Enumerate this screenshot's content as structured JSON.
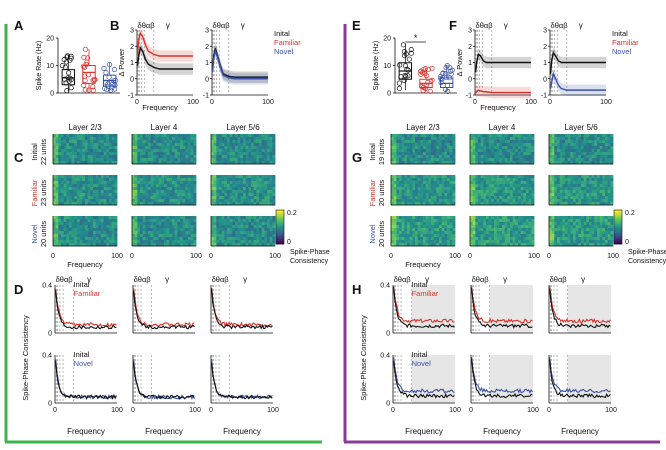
{
  "frames": {
    "left_color": "#3db54a",
    "right_color": "#8b3a9a"
  },
  "colors": {
    "initial": "#111111",
    "familiar": "#d9322b",
    "novel": "#3a52a5",
    "band": "#9a9a9a",
    "shade": "#e6e6e6"
  },
  "panel_labels": [
    "A",
    "B",
    "C",
    "D",
    "E",
    "F",
    "G",
    "H"
  ],
  "band_label": "δθαβ",
  "gamma_label": "γ",
  "x_label": "Frequency",
  "layers": [
    "Layer 2/3",
    "Layer 4",
    "Layer 5/6"
  ],
  "legend": {
    "initial": "Inital",
    "familiar": "Familiar",
    "novel": "Novel"
  },
  "colorbar": {
    "min_label": "0",
    "max_label": "0.2",
    "title_line1": "Spike-Phase",
    "title_line2": "Consistency"
  },
  "chart_data": [
    {
      "id": "A",
      "type": "boxplot",
      "ylabel": "Spike Rate (Hz)",
      "ylim": [
        0,
        20
      ],
      "yticks": [
        0,
        10,
        20
      ],
      "groups": [
        {
          "name": "Initial",
          "min": 0.5,
          "q1": 3,
          "median": 5.5,
          "q3": 8.5,
          "max": 14
        },
        {
          "name": "Familiar",
          "min": 0.5,
          "q1": 3.5,
          "median": 7.5,
          "q3": 10,
          "max": 16
        },
        {
          "name": "Novel",
          "min": 0.5,
          "q1": 2.5,
          "median": 4.5,
          "q3": 6.5,
          "max": 11
        }
      ]
    },
    {
      "id": "B",
      "type": "line",
      "ylabel": "Δ Power",
      "xlabel": "Frequency",
      "xlim": [
        0,
        100
      ],
      "ylim": [
        -1,
        3
      ],
      "yticks": [
        -1,
        0,
        1,
        2,
        3
      ],
      "xticks": [
        0,
        100
      ],
      "subpanels": [
        {
          "series": [
            {
              "name": "Familiar",
              "x": [
                1,
                3,
                6,
                10,
                15,
                20,
                30,
                40,
                60,
                80,
                100
              ],
              "y": [
                1.5,
                2.4,
                2.8,
                2.6,
                2.1,
                1.7,
                1.5,
                1.4,
                1.4,
                1.4,
                1.4
              ]
            },
            {
              "name": "Initial",
              "x": [
                1,
                3,
                6,
                10,
                15,
                20,
                30,
                40,
                60,
                80,
                100
              ],
              "y": [
                0.8,
                1.4,
                1.9,
                1.7,
                1.2,
                0.9,
                0.7,
                0.6,
                0.6,
                0.6,
                0.6
              ]
            }
          ]
        },
        {
          "series": [
            {
              "name": "Initial",
              "x": [
                1,
                3,
                6,
                10,
                15,
                20,
                30,
                40,
                60,
                80,
                100
              ],
              "y": [
                0.5,
                1.4,
                1.9,
                1.4,
                0.8,
                0.3,
                0.15,
                0.1,
                0.1,
                0.1,
                0.1
              ]
            },
            {
              "name": "Novel",
              "x": [
                1,
                3,
                6,
                10,
                15,
                20,
                30,
                40,
                60,
                80,
                100
              ],
              "y": [
                0.4,
                1.2,
                1.7,
                1.3,
                0.7,
                0.2,
                0.05,
                0.0,
                0.0,
                0.0,
                0.0
              ]
            }
          ]
        }
      ]
    },
    {
      "id": "C",
      "type": "heatmap",
      "rows": [
        {
          "condition": "Initial",
          "units": "22 units"
        },
        {
          "condition": "Familiar",
          "units": "23 units"
        },
        {
          "condition": "Novel",
          "units": "20 units"
        }
      ],
      "xlim": [
        0,
        100
      ],
      "xlabel": "Frequency",
      "clim": [
        0,
        0.2
      ]
    },
    {
      "id": "D",
      "type": "line",
      "ylabel": "Spike-Phase Consistency",
      "xlabel": "Frequency",
      "xlim": [
        0,
        100
      ],
      "ylim": [
        0,
        0.4
      ],
      "yticks": [
        0,
        0.4
      ],
      "rows": [
        {
          "compare": "Familiar",
          "base_level": 0.05,
          "cmp_level": 0.07,
          "peak": 0.38
        },
        {
          "compare": "Novel",
          "base_level": 0.05,
          "cmp_level": 0.05,
          "peak": 0.36
        }
      ]
    },
    {
      "id": "E",
      "type": "boxplot",
      "ylabel": "Spike Rate (Hz)",
      "ylim": [
        0,
        20
      ],
      "yticks": [
        0,
        10,
        20
      ],
      "significance": "*",
      "groups": [
        {
          "name": "Initial",
          "min": 1,
          "q1": 5,
          "median": 8,
          "q3": 11,
          "max": 18
        },
        {
          "name": "Familiar",
          "min": 0.5,
          "q1": 2,
          "median": 3.5,
          "q3": 5,
          "max": 9
        },
        {
          "name": "Novel",
          "min": 0.5,
          "q1": 2,
          "median": 3.5,
          "q3": 5.5,
          "max": 10
        }
      ]
    },
    {
      "id": "F",
      "type": "line",
      "ylabel": "Δ Power",
      "xlabel": "Frequency",
      "xlim": [
        0,
        100
      ],
      "ylim": [
        -1,
        3
      ],
      "yticks": [
        -1,
        0,
        1,
        2,
        3
      ],
      "xticks": [
        0,
        100
      ],
      "subpanels": [
        {
          "series": [
            {
              "name": "Initial",
              "x": [
                1,
                3,
                6,
                10,
                15,
                20,
                30,
                40,
                60,
                80,
                100
              ],
              "y": [
                0.4,
                1.0,
                1.5,
                1.4,
                1.1,
                1.0,
                1.0,
                1.0,
                1.0,
                1.0,
                1.0
              ]
            },
            {
              "name": "Familiar",
              "x": [
                1,
                3,
                6,
                10,
                15,
                20,
                30,
                40,
                60,
                80,
                100
              ],
              "y": [
                -0.9,
                -0.8,
                -0.7,
                -0.75,
                -0.8,
                -0.8,
                -0.85,
                -0.85,
                -0.85,
                -0.85,
                -0.85
              ]
            }
          ]
        },
        {
          "series": [
            {
              "name": "Initial",
              "x": [
                1,
                3,
                6,
                10,
                15,
                20,
                30,
                40,
                60,
                80,
                100
              ],
              "y": [
                0.3,
                1.1,
                1.6,
                1.4,
                1.1,
                1.0,
                1.0,
                1.0,
                1.0,
                1.0,
                1.0
              ]
            },
            {
              "name": "Novel",
              "x": [
                1,
                3,
                6,
                10,
                15,
                20,
                30,
                40,
                60,
                80,
                100
              ],
              "y": [
                -0.6,
                -0.2,
                0.3,
                0.0,
                -0.4,
                -0.6,
                -0.7,
                -0.7,
                -0.7,
                -0.7,
                -0.7
              ]
            }
          ]
        }
      ]
    },
    {
      "id": "G",
      "type": "heatmap",
      "rows": [
        {
          "condition": "Initial",
          "units": "19 units"
        },
        {
          "condition": "Familiar",
          "units": "20 units"
        },
        {
          "condition": "Novel",
          "units": "20 units"
        }
      ],
      "xlim": [
        0,
        100
      ],
      "xlabel": "Frequency",
      "clim": [
        0,
        0.2
      ]
    },
    {
      "id": "H",
      "type": "line",
      "ylabel": "Spike-Phase Consistency",
      "xlabel": "Frequency",
      "xlim": [
        0,
        100
      ],
      "ylim": [
        0,
        0.4
      ],
      "yticks": [
        0,
        0.4
      ],
      "rows": [
        {
          "compare": "Familiar",
          "base_level": 0.06,
          "cmp_level": 0.1,
          "peak": 0.4
        },
        {
          "compare": "Novel",
          "base_level": 0.06,
          "cmp_level": 0.1,
          "peak": 0.38
        }
      ]
    }
  ]
}
